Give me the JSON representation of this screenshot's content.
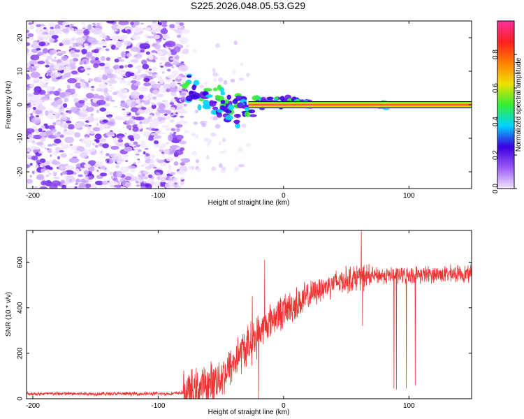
{
  "title": "S225.2026.048.05.53.G29",
  "chart_data": [
    {
      "type": "heatmap",
      "xlabel": "Height of straight line (km)",
      "ylabel": "Frequency (Hz)",
      "xlim": [
        -205,
        150
      ],
      "ylim": [
        -25,
        25
      ],
      "xticks": [
        -200,
        -100,
        0,
        100
      ],
      "yticks": [
        -20,
        -10,
        0,
        10,
        20
      ],
      "colorbar": {
        "label": "Normalized spectral amplitude",
        "range": [
          0,
          1
        ],
        "ticks": [
          "0.0",
          "0.2",
          "0.4",
          "0.6",
          "0.8"
        ],
        "colors": [
          "#f2e6ff",
          "#9b59f5",
          "#3a00e0",
          "#00d4ff",
          "#33ee33",
          "#f0e000",
          "#ff8000",
          "#ff2020",
          "#ff2fa0"
        ]
      },
      "tone": {
        "frequency_hz": 0,
        "start_km": -78,
        "end_km": 150,
        "band_core": "#ff2a6a",
        "band_edge": "#33ee33"
      }
    },
    {
      "type": "line",
      "xlabel": "Height of straight line (km)",
      "ylabel": "SNR (10 * v/v)",
      "xlim": [
        -205,
        150
      ],
      "ylim": [
        0,
        740
      ],
      "xticks": [
        -200,
        -100,
        0,
        100
      ],
      "yticks": [
        0,
        200,
        400,
        600
      ],
      "color": "#ee3333",
      "profile": [
        {
          "x": -205,
          "y": 22
        },
        {
          "x": -90,
          "y": 22
        },
        {
          "x": -75,
          "y": 30
        },
        {
          "x": -60,
          "y": 60
        },
        {
          "x": -45,
          "y": 120
        },
        {
          "x": -35,
          "y": 200
        },
        {
          "x": -25,
          "y": 250
        },
        {
          "x": -15,
          "y": 320
        },
        {
          "x": -5,
          "y": 370
        },
        {
          "x": 5,
          "y": 400
        },
        {
          "x": 15,
          "y": 430
        },
        {
          "x": 25,
          "y": 470
        },
        {
          "x": 40,
          "y": 510
        },
        {
          "x": 55,
          "y": 530
        },
        {
          "x": 70,
          "y": 540
        },
        {
          "x": 100,
          "y": 545
        },
        {
          "x": 150,
          "y": 550
        }
      ],
      "spikes": [
        {
          "x": -15,
          "y": 610
        },
        {
          "x": -20,
          "y": 0
        },
        {
          "x": -25,
          "y": 450
        },
        {
          "x": 62,
          "y": 740
        },
        {
          "x": 63,
          "y": 320
        },
        {
          "x": 88,
          "y": 45
        },
        {
          "x": 90,
          "y": 40
        },
        {
          "x": 98,
          "y": 45
        },
        {
          "x": 105,
          "y": 60
        }
      ]
    }
  ]
}
